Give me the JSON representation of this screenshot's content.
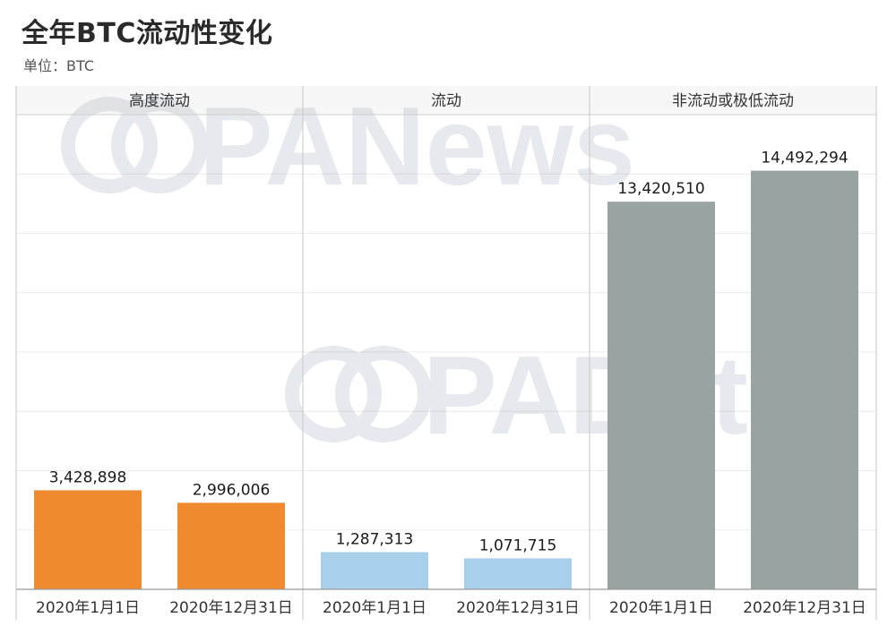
{
  "title": "全年BTC流动性变化",
  "subtitle": "单位：BTC",
  "watermarks": [
    "PANews",
    "PAData"
  ],
  "chart_data": {
    "type": "bar",
    "panels": [
      {
        "name": "高度流动",
        "color": "#ef8a2e",
        "categories": [
          "2020年1月1日",
          "2020年12月31日"
        ],
        "values": [
          3428898,
          2996006
        ],
        "labels": [
          "3,428,898",
          "2,996,006"
        ]
      },
      {
        "name": "流动",
        "color": "#a9d0ea",
        "categories": [
          "2020年1月1日",
          "2020年12月31日"
        ],
        "values": [
          1287313,
          1071715
        ],
        "labels": [
          "1,287,313",
          "1,071,715"
        ]
      },
      {
        "name": "非流动或极低流动",
        "color": "#9aa3a3",
        "categories": [
          "2020年1月1日",
          "2020年12月31日"
        ],
        "values": [
          13420510,
          14492294
        ],
        "labels": [
          "13,420,510",
          "14,492,294"
        ]
      }
    ],
    "ylim": [
      0,
      16000000
    ],
    "gridlines": 8,
    "grid": true,
    "y_tick_labels_shown": false
  }
}
